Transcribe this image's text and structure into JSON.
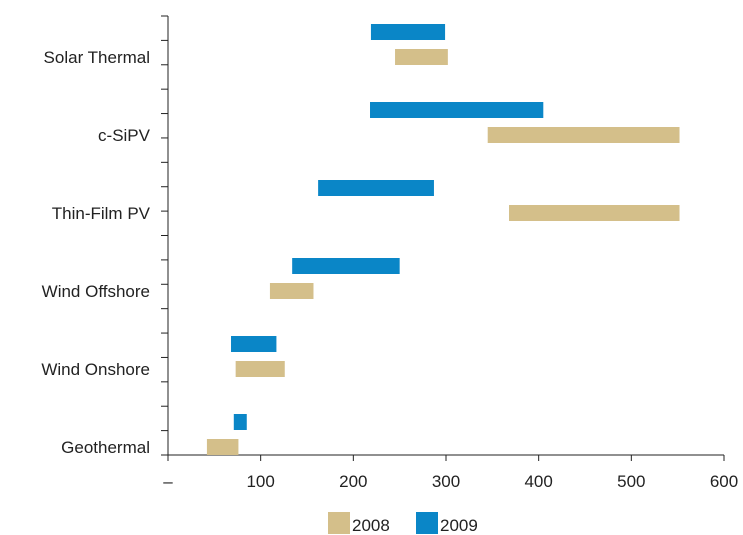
{
  "chart_data": {
    "type": "bar",
    "orientation": "horizontal-range",
    "title": "",
    "xlabel": "",
    "ylabel": "",
    "xlim": [
      0,
      600
    ],
    "x_ticks": [
      0,
      100,
      200,
      300,
      400,
      500,
      600
    ],
    "x_tick_labels": [
      "–",
      "100",
      "200",
      "300",
      "400",
      "500",
      "600"
    ],
    "categories": [
      "Solar Thermal",
      "c-SiPV",
      "Thin-Film PV",
      "Wind Offshore",
      "Wind Onshore",
      "Geothermal"
    ],
    "series": [
      {
        "name": "2008",
        "color": "#d4bf8a",
        "ranges": [
          [
            245,
            302
          ],
          [
            345,
            552
          ],
          [
            368,
            552
          ],
          [
            110,
            157
          ],
          [
            73,
            126
          ],
          [
            42,
            76
          ]
        ]
      },
      {
        "name": "2009",
        "color": "#0a86c7",
        "ranges": [
          [
            219,
            299
          ],
          [
            218,
            405
          ],
          [
            162,
            287
          ],
          [
            134,
            250
          ],
          [
            68,
            117
          ],
          [
            71,
            85
          ]
        ]
      }
    ],
    "legend": {
      "position": "bottom-center",
      "entries": [
        "2008",
        "2009"
      ]
    },
    "grid": false
  }
}
